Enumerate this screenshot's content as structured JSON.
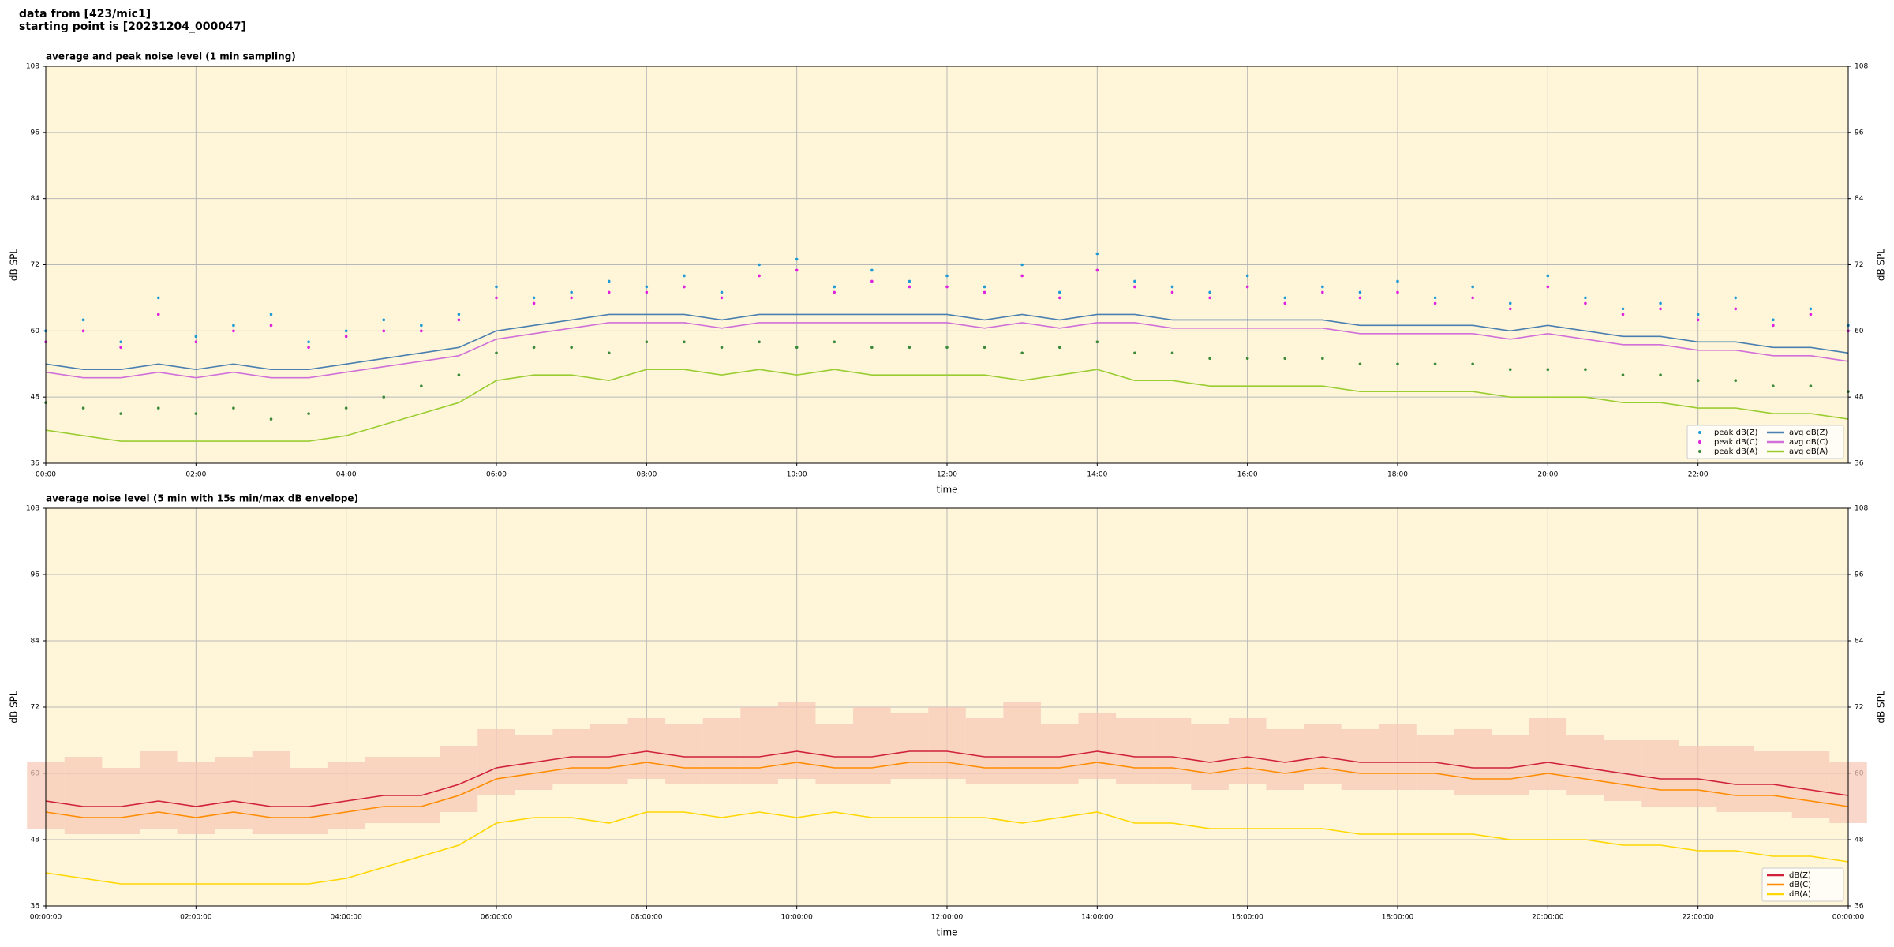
{
  "header": {
    "line1": "data from [423/mic1]",
    "line2": "starting point is [20231204_000047]"
  },
  "chart_data": [
    {
      "type": "line",
      "title": "average and peak noise level (1 min sampling)",
      "xlabel": "time",
      "ylabel": "dB SPL",
      "x": [
        "00:00",
        "00:30",
        "01:00",
        "01:30",
        "02:00",
        "02:30",
        "03:00",
        "03:30",
        "04:00",
        "04:30",
        "05:00",
        "05:30",
        "06:00",
        "06:30",
        "07:00",
        "07:30",
        "08:00",
        "08:30",
        "09:00",
        "09:30",
        "10:00",
        "10:30",
        "11:00",
        "11:30",
        "12:00",
        "12:30",
        "13:00",
        "13:30",
        "14:00",
        "14:30",
        "15:00",
        "15:30",
        "16:00",
        "16:30",
        "17:00",
        "17:30",
        "18:00",
        "18:30",
        "19:00",
        "19:30",
        "20:00",
        "20:30",
        "21:00",
        "21:30",
        "22:00",
        "22:30",
        "23:00",
        "23:30",
        "24:00"
      ],
      "xlim": [
        "00:00",
        "24:00"
      ],
      "xticks": [
        "00:00",
        "02:00",
        "04:00",
        "06:00",
        "08:00",
        "10:00",
        "12:00",
        "14:00",
        "16:00",
        "18:00",
        "20:00",
        "22:00"
      ],
      "ylim": [
        36,
        108
      ],
      "yticks": [
        36,
        48,
        60,
        72,
        84,
        96,
        108
      ],
      "grid": true,
      "background": "#fff6d9",
      "legend": "lower right",
      "legend_columns": 2,
      "series": [
        {
          "name": "peak dB(Z)",
          "style": "dots",
          "color": "#1f9ad6",
          "values": [
            60,
            62,
            58,
            66,
            59,
            61,
            63,
            58,
            60,
            62,
            61,
            63,
            68,
            66,
            67,
            69,
            68,
            70,
            67,
            72,
            73,
            68,
            71,
            69,
            70,
            68,
            72,
            67,
            74,
            69,
            68,
            67,
            70,
            66,
            68,
            67,
            69,
            66,
            68,
            65,
            70,
            66,
            64,
            65,
            63,
            66,
            62,
            64,
            61
          ]
        },
        {
          "name": "peak dB(C)",
          "style": "dots",
          "color": "#e020e0",
          "values": [
            58,
            60,
            57,
            63,
            58,
            60,
            61,
            57,
            59,
            60,
            60,
            62,
            66,
            65,
            66,
            67,
            67,
            68,
            66,
            70,
            71,
            67,
            69,
            68,
            68,
            67,
            70,
            66,
            71,
            68,
            67,
            66,
            68,
            65,
            67,
            66,
            67,
            65,
            66,
            64,
            68,
            65,
            63,
            64,
            62,
            64,
            61,
            63,
            60
          ]
        },
        {
          "name": "peak dB(A)",
          "style": "dots",
          "color": "#3a8a3a",
          "values": [
            47,
            46,
            45,
            46,
            45,
            46,
            44,
            45,
            46,
            48,
            50,
            52,
            56,
            57,
            57,
            56,
            58,
            58,
            57,
            58,
            57,
            58,
            57,
            57,
            57,
            57,
            56,
            57,
            58,
            56,
            56,
            55,
            55,
            55,
            55,
            54,
            54,
            54,
            54,
            53,
            53,
            53,
            52,
            52,
            51,
            51,
            50,
            50,
            49
          ]
        },
        {
          "name": "avg dB(Z)",
          "style": "line",
          "color": "#4a7fb0",
          "values": [
            54,
            53,
            53,
            54,
            53,
            54,
            53,
            53,
            54,
            55,
            56,
            57,
            60,
            61,
            62,
            63,
            63,
            63,
            62,
            63,
            63,
            63,
            63,
            63,
            63,
            62,
            63,
            62,
            63,
            63,
            62,
            62,
            62,
            62,
            62,
            61,
            61,
            61,
            61,
            60,
            61,
            60,
            59,
            59,
            58,
            58,
            57,
            57,
            56
          ]
        },
        {
          "name": "avg dB(C)",
          "style": "line",
          "color": "#d070d8",
          "values": [
            52.5,
            51.5,
            51.5,
            52.5,
            51.5,
            52.5,
            51.5,
            51.5,
            52.5,
            53.5,
            54.5,
            55.5,
            58.5,
            59.5,
            60.5,
            61.5,
            61.5,
            61.5,
            60.5,
            61.5,
            61.5,
            61.5,
            61.5,
            61.5,
            61.5,
            60.5,
            61.5,
            60.5,
            61.5,
            61.5,
            60.5,
            60.5,
            60.5,
            60.5,
            60.5,
            59.5,
            59.5,
            59.5,
            59.5,
            58.5,
            59.5,
            58.5,
            57.5,
            57.5,
            56.5,
            56.5,
            55.5,
            55.5,
            54.5
          ]
        },
        {
          "name": "avg dB(A)",
          "style": "line",
          "color": "#9acd32",
          "values": [
            42,
            41,
            40,
            40,
            40,
            40,
            40,
            40,
            41,
            43,
            45,
            47,
            51,
            52,
            52,
            51,
            53,
            53,
            52,
            53,
            52,
            53,
            52,
            52,
            52,
            52,
            51,
            52,
            53,
            51,
            51,
            50,
            50,
            50,
            50,
            49,
            49,
            49,
            49,
            48,
            48,
            48,
            47,
            47,
            46,
            46,
            45,
            45,
            44
          ]
        }
      ]
    },
    {
      "type": "line",
      "title": "average noise level (5 min with 15s min/max dB envelope)",
      "xlabel": "time",
      "ylabel": "dB SPL",
      "x": [
        "00:00:00",
        "00:30:00",
        "01:00:00",
        "01:30:00",
        "02:00:00",
        "02:30:00",
        "03:00:00",
        "03:30:00",
        "04:00:00",
        "04:30:00",
        "05:00:00",
        "05:30:00",
        "06:00:00",
        "06:30:00",
        "07:00:00",
        "07:30:00",
        "08:00:00",
        "08:30:00",
        "09:00:00",
        "09:30:00",
        "10:00:00",
        "10:30:00",
        "11:00:00",
        "11:30:00",
        "12:00:00",
        "12:30:00",
        "13:00:00",
        "13:30:00",
        "14:00:00",
        "14:30:00",
        "15:00:00",
        "15:30:00",
        "16:00:00",
        "16:30:00",
        "17:00:00",
        "17:30:00",
        "18:00:00",
        "18:30:00",
        "19:00:00",
        "19:30:00",
        "20:00:00",
        "20:30:00",
        "21:00:00",
        "21:30:00",
        "22:00:00",
        "22:30:00",
        "23:00:00",
        "23:30:00",
        "24:00:00"
      ],
      "xlim": [
        "00:00:00",
        "24:00:00"
      ],
      "xticks": [
        "00:00:00",
        "02:00:00",
        "04:00:00",
        "06:00:00",
        "08:00:00",
        "10:00:00",
        "12:00:00",
        "14:00:00",
        "16:00:00",
        "18:00:00",
        "20:00:00",
        "22:00:00",
        {
          "value": "24:00:00",
          "label": "00:00:00"
        }
      ],
      "ylim": [
        36,
        108
      ],
      "yticks": [
        36,
        48,
        60,
        72,
        84,
        96,
        108
      ],
      "grid": true,
      "background": "#fff6d9",
      "legend": "lower right",
      "legend_columns": 1,
      "envelope": {
        "color": "#f7c6b4",
        "lower": [
          50,
          49,
          49,
          50,
          49,
          50,
          49,
          49,
          50,
          51,
          51,
          53,
          56,
          57,
          58,
          58,
          59,
          58,
          58,
          58,
          59,
          58,
          58,
          59,
          59,
          58,
          58,
          58,
          59,
          58,
          58,
          57,
          58,
          57,
          58,
          57,
          57,
          57,
          56,
          56,
          57,
          56,
          55,
          54,
          54,
          53,
          53,
          52,
          51
        ],
        "upper": [
          62,
          63,
          61,
          64,
          62,
          63,
          64,
          61,
          62,
          63,
          63,
          65,
          68,
          67,
          68,
          69,
          70,
          69,
          70,
          72,
          73,
          69,
          72,
          71,
          72,
          70,
          73,
          69,
          71,
          70,
          70,
          69,
          70,
          68,
          69,
          68,
          69,
          67,
          68,
          67,
          70,
          67,
          66,
          66,
          65,
          65,
          64,
          64,
          62
        ]
      },
      "series": [
        {
          "name": "dB(Z)",
          "style": "line",
          "color": "#d0203a",
          "values": [
            55,
            54,
            54,
            55,
            54,
            55,
            54,
            54,
            55,
            56,
            56,
            58,
            61,
            62,
            63,
            63,
            64,
            63,
            63,
            63,
            64,
            63,
            63,
            64,
            64,
            63,
            63,
            63,
            64,
            63,
            63,
            62,
            63,
            62,
            63,
            62,
            62,
            62,
            61,
            61,
            62,
            61,
            60,
            59,
            59,
            58,
            58,
            57,
            56
          ]
        },
        {
          "name": "dB(C)",
          "style": "line",
          "color": "#ff8c00",
          "values": [
            53,
            52,
            52,
            53,
            52,
            53,
            52,
            52,
            53,
            54,
            54,
            56,
            59,
            60,
            61,
            61,
            62,
            61,
            61,
            61,
            62,
            61,
            61,
            62,
            62,
            61,
            61,
            61,
            62,
            61,
            61,
            60,
            61,
            60,
            61,
            60,
            60,
            60,
            59,
            59,
            60,
            59,
            58,
            57,
            57,
            56,
            56,
            55,
            54
          ]
        },
        {
          "name": "dB(A)",
          "style": "line",
          "color": "#ffd700",
          "values": [
            42,
            41,
            40,
            40,
            40,
            40,
            40,
            40,
            41,
            43,
            45,
            47,
            51,
            52,
            52,
            51,
            53,
            53,
            52,
            53,
            52,
            53,
            52,
            52,
            52,
            52,
            51,
            52,
            53,
            51,
            51,
            50,
            50,
            50,
            50,
            49,
            49,
            49,
            49,
            48,
            48,
            48,
            47,
            47,
            46,
            46,
            45,
            45,
            44
          ]
        }
      ]
    }
  ]
}
